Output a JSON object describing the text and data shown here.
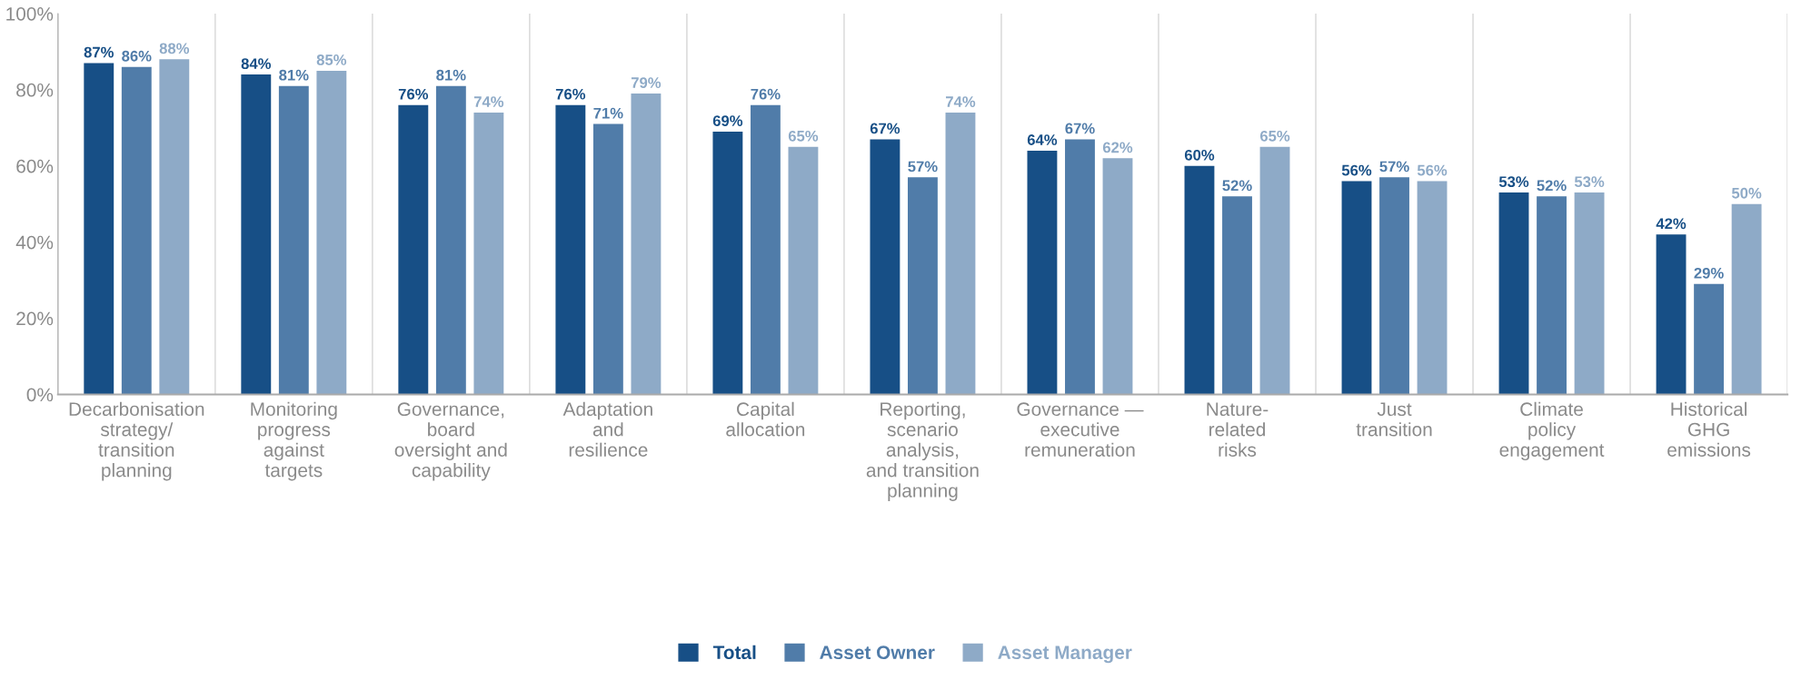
{
  "chart_data": {
    "type": "bar",
    "categories": [
      "Decarbonisation\nstrategy/\ntransition\nplanning",
      "Monitoring\nprogress\nagainst\ntargets",
      "Governance,\nboard\noversight and\ncapability",
      "Adaptation\nand\nresilience",
      "Capital\nallocation",
      "Reporting,\nscenario\nanalysis,\nand transition\nplanning",
      "Governance —\nexecutive\nremuneration",
      "Nature-\nrelated\nrisks",
      "Just\ntransition",
      "Climate\npolicy\nengagement",
      "Historical\nGHG\nemissions"
    ],
    "series": [
      {
        "name": "Total",
        "color": "#174f86",
        "values": [
          87,
          84,
          76,
          76,
          69,
          67,
          64,
          60,
          56,
          53,
          42
        ],
        "value_labels": [
          "87%",
          "84%",
          "76%",
          "76%",
          "69%",
          "67%",
          "64%",
          "60%",
          "56%",
          "53%",
          "42%"
        ]
      },
      {
        "name": "Asset Owner",
        "color": "#507ca9",
        "values": [
          86,
          81,
          81,
          71,
          76,
          57,
          67,
          52,
          57,
          52,
          29
        ],
        "value_labels": [
          "86%",
          "81%",
          "81%",
          "71%",
          "76%",
          "57%",
          "67%",
          "52%",
          "57%",
          "52%",
          "29%"
        ]
      },
      {
        "name": "Asset Manager",
        "color": "#8eaac7",
        "values": [
          88,
          85,
          74,
          79,
          65,
          74,
          62,
          65,
          56,
          53,
          50
        ],
        "value_labels": [
          "88%",
          "85%",
          "74%",
          "79%",
          "65%",
          "74%",
          "62%",
          "65%",
          "56%",
          "53%",
          "50%"
        ]
      }
    ],
    "ylim": [
      0,
      100
    ],
    "yticks": [
      {
        "value": 0,
        "label": "0%"
      },
      {
        "value": 20,
        "label": "20%"
      },
      {
        "value": 40,
        "label": "40%"
      },
      {
        "value": 60,
        "label": "60%"
      },
      {
        "value": 80,
        "label": "80%"
      },
      {
        "value": 100,
        "label": "100%"
      }
    ],
    "grid": "x",
    "legend": "bottom"
  }
}
